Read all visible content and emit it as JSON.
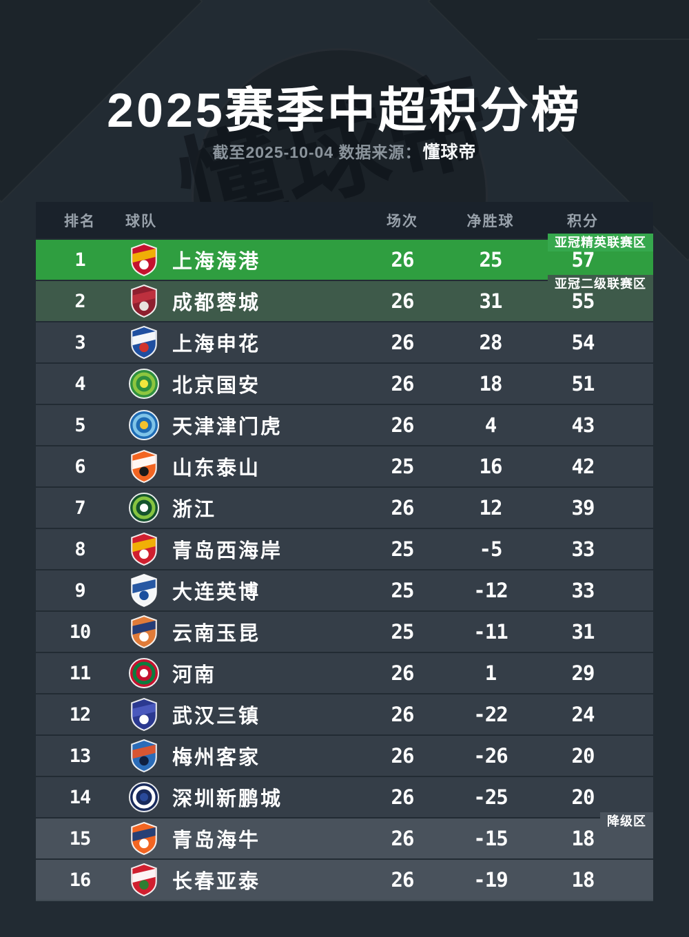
{
  "header": {
    "title": "2025赛季中超积分榜",
    "subtitle_prefix": "截至2025-10-04 数据来源：",
    "subtitle_source": "懂球帝",
    "watermark_text": "懂球帝"
  },
  "colors": {
    "page_bg": "#222b33",
    "thead_bg": "#1a222b",
    "thead_text": "#99a2ab",
    "row_bg": "#353e48",
    "row_bg_bottom": "#49525c",
    "row1_bg": "#2f9e40",
    "row1_badge_bg": "#36a84d",
    "row2_bg": "#3e5a4a",
    "row2_badge_bg": "#3e5a4a",
    "relegation_badge_bg": "#4a535d",
    "text_white": "#ffffff"
  },
  "table": {
    "columns": {
      "rank": "排名",
      "team": "球队",
      "played": "场次",
      "gd": "净胜球",
      "points": "积分"
    },
    "rows": [
      {
        "rank": 1,
        "team": "上海海港",
        "played": 26,
        "gd": 25,
        "points": 57,
        "zone": "亚冠精英联赛区",
        "row_bg": "#2f9e40",
        "badge_bg": "#36a84d",
        "logo": {
          "type": "shield",
          "c1": "#c4122e",
          "c2": "#f2b705",
          "c3": "#ffffff"
        }
      },
      {
        "rank": 2,
        "team": "成都蓉城",
        "played": 26,
        "gd": 31,
        "points": 55,
        "zone": "亚冠二级联赛区",
        "row_bg": "#3e5a4a",
        "badge_bg": "#3e5a4a",
        "logo": {
          "type": "shield",
          "c1": "#8e1f2f",
          "c2": "#c0323f",
          "c3": "#e8e2dd"
        }
      },
      {
        "rank": 3,
        "team": "上海申花",
        "played": 26,
        "gd": 28,
        "points": 54,
        "logo": {
          "type": "shield",
          "c1": "#1f4fa0",
          "c2": "#ffffff",
          "c3": "#d0342c"
        }
      },
      {
        "rank": 4,
        "team": "北京国安",
        "played": 26,
        "gd": 18,
        "points": 51,
        "logo": {
          "type": "circle",
          "c1": "#2f8f3e",
          "c2": "#8dc63f",
          "c3": "#f2e63d"
        }
      },
      {
        "rank": 5,
        "team": "天津津门虎",
        "played": 26,
        "gd": 4,
        "points": 43,
        "logo": {
          "type": "circle",
          "c1": "#1f6cb4",
          "c2": "#7fc4e8",
          "c3": "#f2c12e"
        }
      },
      {
        "rank": 6,
        "team": "山东泰山",
        "played": 25,
        "gd": 16,
        "points": 42,
        "logo": {
          "type": "shield",
          "c1": "#f26522",
          "c2": "#ffffff",
          "c3": "#1a1a1a"
        }
      },
      {
        "rank": 7,
        "team": "浙江",
        "played": 26,
        "gd": 12,
        "points": 39,
        "logo": {
          "type": "circle",
          "c1": "#14532d",
          "c2": "#86c440",
          "c3": "#ffffff"
        }
      },
      {
        "rank": 8,
        "team": "青岛西海岸",
        "played": 25,
        "gd": -5,
        "points": 33,
        "logo": {
          "type": "shield",
          "c1": "#d01f2f",
          "c2": "#f2b705",
          "c3": "#ffffff"
        }
      },
      {
        "rank": 9,
        "team": "大连英博",
        "played": 25,
        "gd": -12,
        "points": 33,
        "logo": {
          "type": "shield",
          "c1": "#f4f6f8",
          "c2": "#1b4f9e",
          "c3": "#1b4f9e"
        }
      },
      {
        "rank": 10,
        "team": "云南玉昆",
        "played": 25,
        "gd": -11,
        "points": 31,
        "logo": {
          "type": "shield",
          "c1": "#e07b39",
          "c2": "#1b3a7a",
          "c3": "#ffffff"
        }
      },
      {
        "rank": 11,
        "team": "河南",
        "played": 26,
        "gd": 1,
        "points": 29,
        "logo": {
          "type": "circle",
          "c1": "#c4122f",
          "c2": "#0a7d3e",
          "c3": "#ffffff"
        }
      },
      {
        "rank": 12,
        "team": "武汉三镇",
        "played": 26,
        "gd": -22,
        "points": 24,
        "logo": {
          "type": "shield",
          "c1": "#2b3990",
          "c2": "#4c5bc0",
          "c3": "#ffffff"
        }
      },
      {
        "rank": 13,
        "team": "梅州客家",
        "played": 26,
        "gd": -26,
        "points": 20,
        "logo": {
          "type": "shield",
          "c1": "#2b6cb8",
          "c2": "#e2552b",
          "c3": "#102040"
        }
      },
      {
        "rank": 14,
        "team": "深圳新鹏城",
        "played": 26,
        "gd": -25,
        "points": 20,
        "logo": {
          "type": "circle",
          "c1": "#182a5c",
          "c2": "#ffffff",
          "c3": "#2a4a9a"
        }
      },
      {
        "rank": 15,
        "team": "青岛海牛",
        "played": 26,
        "gd": -15,
        "points": 18,
        "zone": "降级区",
        "row_bg": "#49525c",
        "badge_bg": "#4a535d",
        "logo": {
          "type": "shield",
          "c1": "#f26522",
          "c2": "#1b3e7a",
          "c3": "#ffffff"
        }
      },
      {
        "rank": 16,
        "team": "长春亚泰",
        "played": 26,
        "gd": -19,
        "points": 18,
        "row_bg": "#49525c",
        "logo": {
          "type": "shield",
          "c1": "#d01f2f",
          "c2": "#ffffff",
          "c3": "#2e7d32"
        }
      }
    ]
  },
  "chart_data": {
    "type": "table",
    "title": "2025赛季中超积分榜",
    "subtitle": "截至2025-10-04 数据来源：懂球帝",
    "columns": [
      "排名",
      "球队",
      "场次",
      "净胜球",
      "积分"
    ],
    "rows": [
      [
        1,
        "上海海港",
        26,
        25,
        57
      ],
      [
        2,
        "成都蓉城",
        26,
        31,
        55
      ],
      [
        3,
        "上海申花",
        26,
        28,
        54
      ],
      [
        4,
        "北京国安",
        26,
        18,
        51
      ],
      [
        5,
        "天津津门虎",
        26,
        4,
        43
      ],
      [
        6,
        "山东泰山",
        25,
        16,
        42
      ],
      [
        7,
        "浙江",
        26,
        12,
        39
      ],
      [
        8,
        "青岛西海岸",
        25,
        -5,
        33
      ],
      [
        9,
        "大连英博",
        25,
        -12,
        33
      ],
      [
        10,
        "云南玉昆",
        25,
        -11,
        31
      ],
      [
        11,
        "河南",
        26,
        1,
        29
      ],
      [
        12,
        "武汉三镇",
        26,
        -22,
        24
      ],
      [
        13,
        "梅州客家",
        26,
        -26,
        20
      ],
      [
        14,
        "深圳新鹏城",
        26,
        -25,
        20
      ],
      [
        15,
        "青岛海牛",
        26,
        -15,
        18
      ],
      [
        16,
        "长春亚泰",
        26,
        -19,
        18
      ]
    ],
    "annotations": [
      {
        "row": 1,
        "label": "亚冠精英联赛区"
      },
      {
        "row": 2,
        "label": "亚冠二级联赛区"
      },
      {
        "row": 15,
        "label": "降级区"
      }
    ],
    "legend_position": "none",
    "grid": false
  }
}
